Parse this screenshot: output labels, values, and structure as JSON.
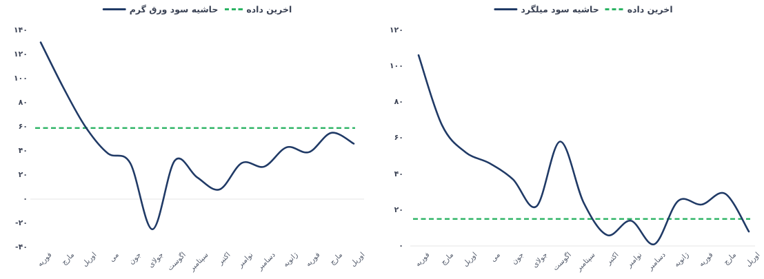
{
  "colors": {
    "series_line": "#203a66",
    "threshold_line": "#2bb363",
    "tick_text": "#3e4557",
    "axis_label_text": "#545c6c",
    "zero_gridline": "#ebebeb",
    "background": "#ffffff"
  },
  "chart_data": [
    {
      "type": "line",
      "title": "",
      "categories": [
        "فوریه",
        "مارچ",
        "اوریل",
        "می",
        "جون",
        "جولای",
        "اگوست",
        "سپتامبر",
        "اکتبر",
        "نوامبر",
        "دسامبر",
        "ژانویه",
        "فوریه",
        "مارچ",
        "اوریل"
      ],
      "series": [
        {
          "name": "حاشیه سود ورق گرم",
          "values": [
            130,
            93,
            60,
            38,
            30,
            -25,
            32,
            18,
            8,
            30,
            27,
            43,
            39,
            55,
            46
          ]
        }
      ],
      "threshold": {
        "name": "اخرین داده",
        "value": 59,
        "style": "dashed"
      },
      "ylim": [
        -40,
        140
      ],
      "y_ticks": [
        {
          "value": 140,
          "label": "۱۴۰"
        },
        {
          "value": 120,
          "label": "۱۲۰"
        },
        {
          "value": 100,
          "label": "۱۰۰"
        },
        {
          "value": 80,
          "label": "۸۰"
        },
        {
          "value": 60,
          "label": "۶۰"
        },
        {
          "value": 40,
          "label": "۴۰"
        },
        {
          "value": 20,
          "label": "۲۰"
        },
        {
          "value": 0,
          "label": "۰"
        },
        {
          "value": -20,
          "label": "-۲۰"
        },
        {
          "value": -40,
          "label": "-۴۰"
        }
      ],
      "grid": "zero-line-only",
      "legend_position": "top-center",
      "smooth": true
    },
    {
      "type": "line",
      "title": "",
      "categories": [
        "فوریه",
        "مارچ",
        "اوریل",
        "می",
        "جون",
        "جولای",
        "اگوست",
        "سپتامبر",
        "اکتبر",
        "نوامبر",
        "دسامبر",
        "ژانویه",
        "فوریه",
        "مارچ",
        "اوریل"
      ],
      "series": [
        {
          "name": "حاشیه سود میلگرد",
          "values": [
            106,
            67,
            52,
            46,
            37,
            22,
            58,
            24,
            6,
            14,
            1,
            25,
            23,
            29,
            8
          ]
        }
      ],
      "threshold": {
        "name": "اخرین داده",
        "value": 15,
        "style": "dashed"
      },
      "ylim": [
        0,
        120
      ],
      "y_ticks": [
        {
          "value": 120,
          "label": "۱۲۰"
        },
        {
          "value": 100,
          "label": "۱۰۰"
        },
        {
          "value": 80,
          "label": "۸۰"
        },
        {
          "value": 60,
          "label": "۶۰"
        },
        {
          "value": 40,
          "label": "۴۰"
        },
        {
          "value": 20,
          "label": "۲۰"
        },
        {
          "value": 0,
          "label": "۰"
        }
      ],
      "grid": "zero-line-only",
      "legend_position": "top-center",
      "smooth": true
    }
  ]
}
